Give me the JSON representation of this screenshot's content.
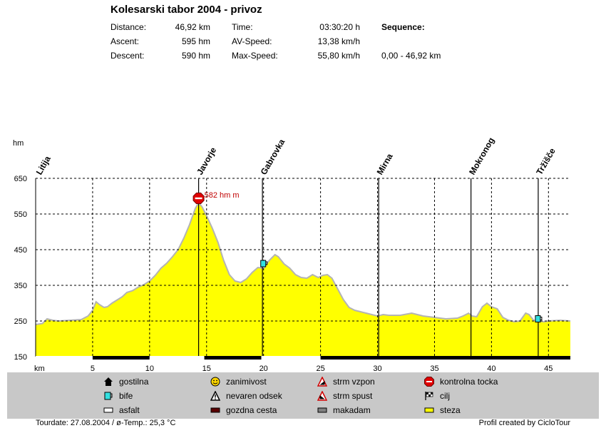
{
  "header": {
    "title": "Kolesarski tabor 2004 - privoz",
    "stats": {
      "distance_label": "Distance:",
      "distance_value": "46,92 km",
      "ascent_label": "Ascent:",
      "ascent_value": "595 hm",
      "descent_label": "Descent:",
      "descent_value": "590 hm",
      "time_label": "Time:",
      "time_value": "03:30:20 h",
      "avspeed_label": "AV-Speed:",
      "avspeed_value": "13,38 km/h",
      "maxspeed_label": "Max-Speed:",
      "maxspeed_value": "55,80 km/h",
      "sequence_label": "Sequence:",
      "sequence_value": "0,00 - 46,92 km"
    }
  },
  "chart_data": {
    "type": "area",
    "ylabel": "hm",
    "xlabel": "km",
    "xlim": [
      0,
      46.92
    ],
    "ylim": [
      150,
      650
    ],
    "grid": true,
    "x_ticks": [
      5,
      10,
      15,
      20,
      25,
      30,
      35,
      40,
      45
    ],
    "y_ticks": [
      150,
      250,
      350,
      450,
      550,
      650
    ],
    "fill_color": "#ffff00",
    "line_color": "#b4b4b4",
    "series": [
      {
        "x": [
          0,
          0.6,
          1,
          1.5,
          2,
          3,
          4,
          4.6,
          5,
          5.3,
          5.6,
          6,
          6.3,
          6.7,
          7.2,
          7.6,
          8,
          8.5,
          9,
          9.5,
          10,
          10.5,
          11,
          11.5,
          12,
          12.5,
          13,
          13.5,
          14,
          14.3,
          14.6,
          15,
          15.5,
          16,
          16.5,
          17,
          17.5,
          18,
          18.5,
          19,
          19.5,
          20,
          20.5,
          21,
          21.3,
          21.8,
          22.3,
          22.8,
          23.3,
          23.8,
          24.3,
          24.8,
          25.2,
          25.6,
          26,
          26.5,
          27,
          27.5,
          28,
          28.5,
          29,
          29.5,
          30,
          30.5,
          31,
          32,
          33,
          34,
          35,
          36,
          37,
          37.5,
          38,
          38.3,
          38.7,
          39.2,
          39.6,
          40,
          40.5,
          41,
          41.5,
          42,
          42.5,
          43,
          43.3,
          43.7,
          44.2,
          44.6,
          45,
          46,
          46.92
        ],
        "y": [
          240,
          243,
          256,
          252,
          250,
          252,
          254,
          264,
          280,
          304,
          296,
          288,
          290,
          300,
          310,
          318,
          330,
          335,
          345,
          352,
          362,
          378,
          398,
          412,
          430,
          450,
          482,
          520,
          565,
          582,
          570,
          545,
          510,
          470,
          420,
          380,
          362,
          358,
          368,
          386,
          400,
          398,
          420,
          436,
          430,
          410,
          398,
          380,
          372,
          370,
          380,
          372,
          378,
          380,
          370,
          340,
          310,
          288,
          280,
          276,
          272,
          268,
          264,
          268,
          266,
          266,
          272,
          264,
          260,
          256,
          258,
          264,
          272,
          264,
          262,
          290,
          300,
          290,
          284,
          260,
          252,
          248,
          250,
          272,
          268,
          252,
          250,
          248,
          250,
          252,
          250
        ]
      }
    ],
    "places": [
      {
        "name": "Litija",
        "km": 0.2
      },
      {
        "name": "Javorje",
        "km": 14.3
      },
      {
        "name": "Gabrovka",
        "km": 19.9
      },
      {
        "name": "Mirna",
        "km": 30.1
      },
      {
        "name": "Mokronog",
        "km": 38.2
      },
      {
        "name": "Tržišče",
        "km": 44.1
      }
    ],
    "peak_label": "582 hm m",
    "markers": [
      {
        "type": "kontrolna tocka",
        "km": 14.3,
        "alt": 594
      },
      {
        "type": "bife",
        "km": 20.0,
        "alt": 410
      },
      {
        "type": "bife",
        "km": 44.1,
        "alt": 255
      }
    ],
    "surface_segments": [
      {
        "from": 0,
        "to": 5.0,
        "type": "asfalt"
      },
      {
        "from": 5.0,
        "to": 10.0,
        "type": "gozdna cesta"
      },
      {
        "from": 10.0,
        "to": 14.8,
        "type": "asfalt"
      },
      {
        "from": 14.8,
        "to": 19.8,
        "type": "gozdna cesta"
      },
      {
        "from": 19.8,
        "to": 25.0,
        "type": "asfalt"
      },
      {
        "from": 25.0,
        "to": 46.92,
        "type": "gozdna cesta"
      }
    ]
  },
  "legend": {
    "gostilna": "gostilna",
    "bife": "bife",
    "asfalt": "asfalt",
    "zanimivost": "zanimivost",
    "nevaren": "nevaren odsek",
    "gozdna": "gozdna cesta",
    "vzpon": "strm vzpon",
    "spust": "strm spust",
    "makadam": "makadam",
    "kontrolna": "kontrolna tocka",
    "cilj": "cilj",
    "steza": "steza"
  },
  "footer": {
    "left": "Tourdate: 27.08.2004  /  ø-Temp.: 25,3 °C",
    "right": "Profil created by CicloTour"
  }
}
